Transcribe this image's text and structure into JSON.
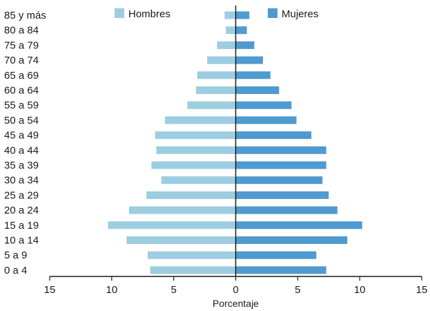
{
  "chart_data": {
    "type": "bar",
    "orientation": "horizontal-population-pyramid",
    "categories": [
      "85 y más",
      "80 a 84",
      "75 a 79",
      "70 a 74",
      "65 a 69",
      "60 a 64",
      "55 a 59",
      "50 a 54",
      "45 a 49",
      "40 a 44",
      "35 a 39",
      "30 a 34",
      "25 a 29",
      "20 a 24",
      "15 a 19",
      "10 a 14",
      "5 a 9",
      "0 a 4"
    ],
    "series": [
      {
        "name": "Hombres",
        "color": "#9dcde0",
        "side": "left",
        "values": [
          0.9,
          0.8,
          1.5,
          2.3,
          3.1,
          3.2,
          3.9,
          5.7,
          6.5,
          6.4,
          6.8,
          6.0,
          7.2,
          8.6,
          10.3,
          8.8,
          7.1,
          6.9
        ]
      },
      {
        "name": "Mujeres",
        "color": "#4f9ad0",
        "side": "right",
        "values": [
          1.1,
          0.9,
          1.5,
          2.2,
          2.8,
          3.5,
          4.5,
          4.9,
          6.1,
          7.3,
          7.3,
          7.0,
          7.5,
          8.2,
          10.2,
          9.0,
          6.5,
          7.3
        ]
      }
    ],
    "xlabel": "Porcentaje",
    "ylabel": "",
    "xlim": [
      -15,
      15
    ],
    "xticks": [
      -15,
      -10,
      -5,
      0,
      5,
      10,
      15
    ],
    "xtick_labels": [
      "15",
      "10",
      "5",
      "0",
      "5",
      "10",
      "15"
    ],
    "grid": false,
    "legend_placement": "top-center",
    "center_line_color": "#1a1a1a"
  }
}
